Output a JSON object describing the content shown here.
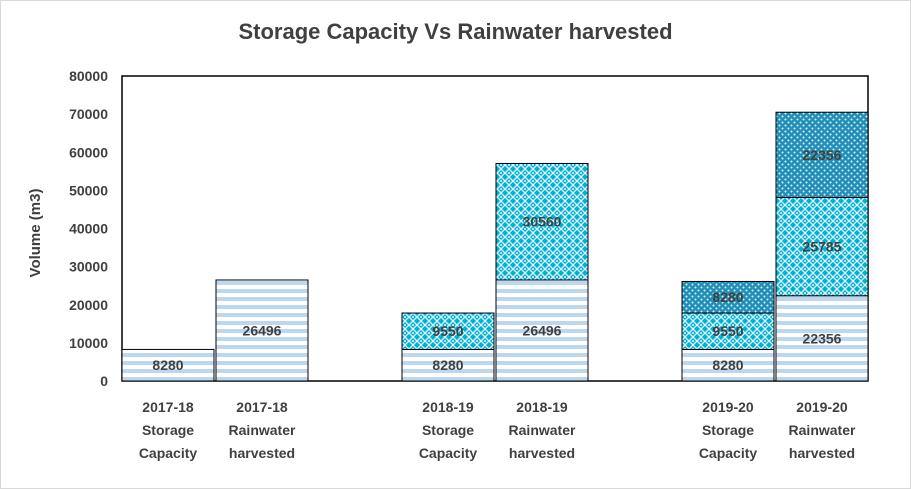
{
  "chart_data": {
    "type": "bar",
    "title": "Storage Capacity Vs Rainwater harvested",
    "ylabel": "Volume (m3)",
    "ylim": [
      0,
      80000
    ],
    "yticks": [
      "0",
      "10000",
      "20000",
      "30000",
      "40000",
      "50000",
      "60000",
      "70000",
      "80000"
    ],
    "stacked": true,
    "grid": false,
    "categories": [
      [
        "2017-18",
        "Storage",
        "Capacity"
      ],
      [
        "2017-18",
        "Rainwater",
        "harvested"
      ],
      [
        "2018-19",
        "Storage",
        "Capacity"
      ],
      [
        "2018-19",
        "Rainwater",
        "harvested"
      ],
      [
        "2019-20",
        "Storage",
        "Capacity"
      ],
      [
        "2019-20",
        "Rainwater",
        "harvested"
      ]
    ],
    "bars": [
      {
        "segments": [
          {
            "value": 8280,
            "label": "8280",
            "pattern": "stripes"
          }
        ]
      },
      {
        "segments": [
          {
            "value": 26496,
            "label": "26496",
            "pattern": "stripes"
          }
        ]
      },
      {
        "segments": [
          {
            "value": 8280,
            "label": "8280",
            "pattern": "stripes"
          },
          {
            "value": 9550,
            "label": "9550",
            "pattern": "lattice"
          }
        ]
      },
      {
        "segments": [
          {
            "value": 26496,
            "label": "26496",
            "pattern": "stripes"
          },
          {
            "value": 30560,
            "label": "30560",
            "pattern": "lattice"
          }
        ]
      },
      {
        "segments": [
          {
            "value": 8280,
            "label": "8280",
            "pattern": "stripes"
          },
          {
            "value": 9550,
            "label": "9550",
            "pattern": "lattice"
          },
          {
            "value": 8280,
            "label": "8280",
            "pattern": "dots"
          }
        ]
      },
      {
        "segments": [
          {
            "value": 22356,
            "label": "22356",
            "pattern": "stripes"
          },
          {
            "value": 25785,
            "label": "25785",
            "pattern": "lattice"
          },
          {
            "value": 22356,
            "label": "22356",
            "pattern": "dots"
          }
        ]
      }
    ],
    "colors": {
      "stripe": "#bdd7ee",
      "lattice": "#00b0d8",
      "dots": "#1f8fb8",
      "outline": "#000000",
      "text": "#404040"
    }
  }
}
